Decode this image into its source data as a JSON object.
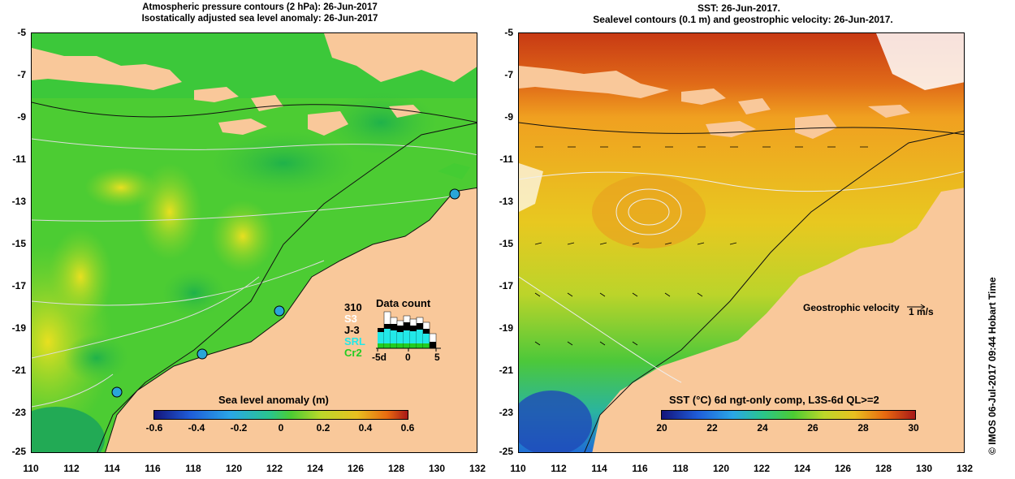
{
  "left_panel": {
    "title_line1": "Atmospheric pressure contours (2 hPa): 26-Jun-2017",
    "title_line2": "Isostatically adjusted sea level anomaly: 26-Jun-2017",
    "colorbar_title": "Sea level anomaly (m)",
    "colorbar_ticks": [
      "-0.6",
      "-0.4",
      "-0.2",
      "0",
      "0.2",
      "0.4",
      "0.6"
    ],
    "inset": {
      "title": "Data count",
      "count": "310",
      "series": [
        {
          "label": "S3",
          "color": "#ffffff"
        },
        {
          "label": "J-3",
          "color": "#000000"
        },
        {
          "label": "SRL",
          "color": "#22e8e8"
        },
        {
          "label": "Cr2",
          "color": "#22cc22"
        }
      ],
      "x_ticks": [
        "-5d",
        "0",
        "5"
      ]
    }
  },
  "right_panel": {
    "title_line1": "SST: 26-Jun-2017.",
    "title_line2": "Sealevel contours (0.1 m) and geostrophic velocity: 26-Jun-2017.",
    "colorbar_title": "SST (°C) 6d ngt-only comp, L3S-6d QL>=2",
    "colorbar_ticks": [
      "20",
      "22",
      "24",
      "26",
      "28",
      "30"
    ],
    "velocity_label": "Geostrophic velocity",
    "velocity_scale": "1 m/s"
  },
  "y_axis_labels": [
    "-5",
    "-7",
    "-9",
    "-11",
    "-13",
    "-15",
    "-17",
    "-19",
    "-21",
    "-23",
    "-25"
  ],
  "x_axis_labels": [
    "110",
    "112",
    "114",
    "116",
    "118",
    "120",
    "122",
    "124",
    "126",
    "128",
    "130",
    "132"
  ],
  "credit": "©  IMOS 06-Jul-2017 09:44 Hobart Time",
  "colors": {
    "land": "#f9c89a",
    "ocean_sla": "#44cc33",
    "ocean_sst": "#ddcc22"
  }
}
